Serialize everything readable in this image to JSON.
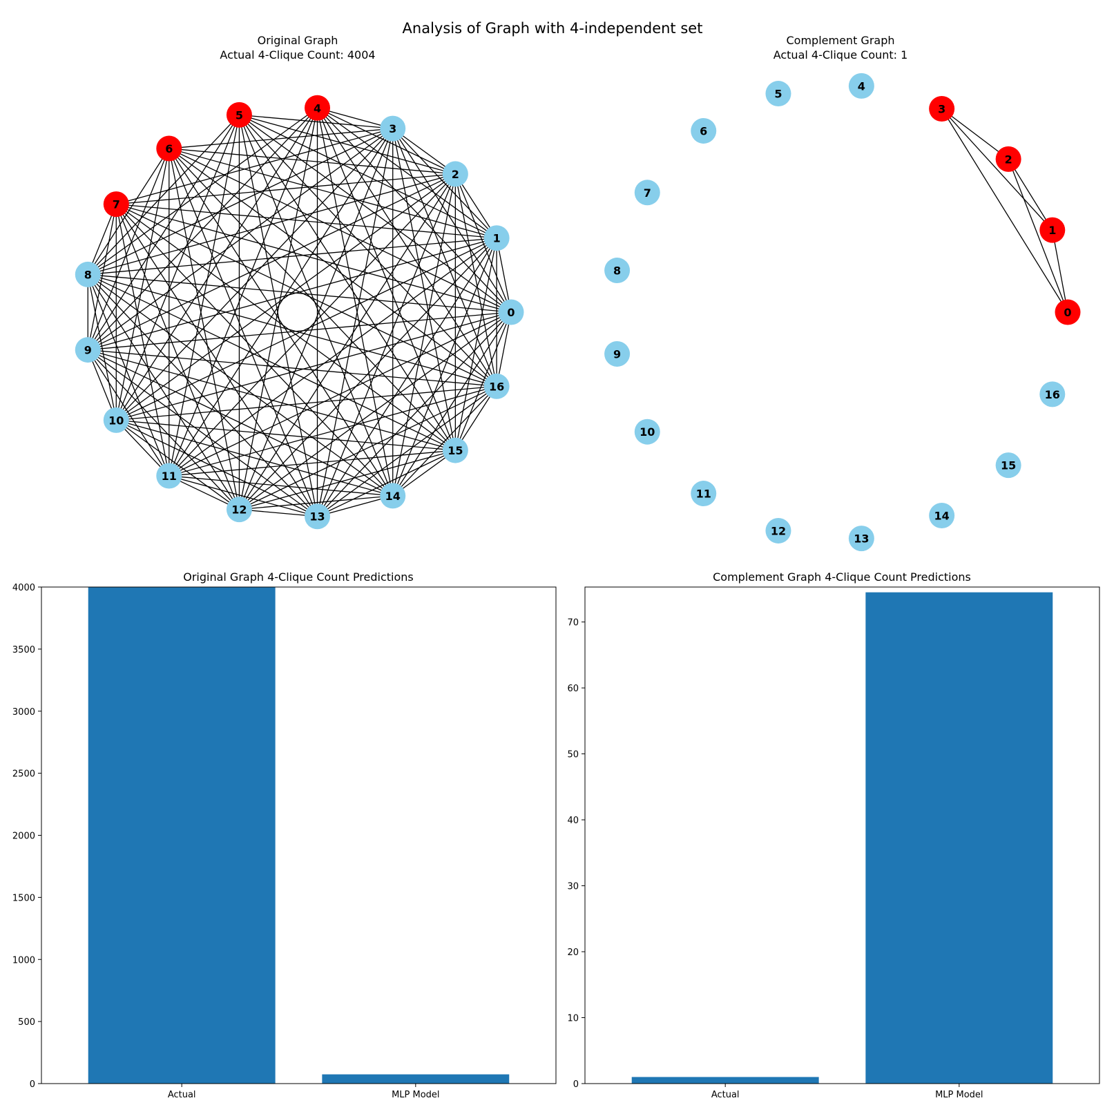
{
  "figure": {
    "suptitle": "Analysis of Graph with 4-independent set"
  },
  "colors": {
    "highlight_node": "#ff0000",
    "normal_node": "#87ceeb",
    "edge": "#000000",
    "bar": "#1f77b4"
  },
  "chart_data": [
    {
      "type": "graph",
      "title_line1": "Original Graph",
      "title_line2": "Actual 4-Clique Count: 4004",
      "nodes": [
        0,
        1,
        2,
        3,
        4,
        5,
        6,
        7,
        8,
        9,
        10,
        11,
        12,
        13,
        14,
        15,
        16
      ],
      "highlighted_nodes": [
        4,
        5,
        6,
        7
      ],
      "edges_rule": "all pairs except among highlighted nodes"
    },
    {
      "type": "graph",
      "title_line1": "Complement Graph",
      "title_line2": "Actual 4-Clique Count: 1",
      "nodes": [
        0,
        1,
        2,
        3,
        4,
        5,
        6,
        7,
        8,
        9,
        10,
        11,
        12,
        13,
        14,
        15,
        16
      ],
      "highlighted_nodes": [
        0,
        1,
        2,
        3
      ],
      "edges": [
        [
          0,
          1
        ],
        [
          0,
          2
        ],
        [
          0,
          3
        ],
        [
          1,
          2
        ],
        [
          1,
          3
        ],
        [
          2,
          3
        ]
      ]
    },
    {
      "type": "bar",
      "title": "Original Graph 4-Clique Count Predictions",
      "categories": [
        "Actual",
        "MLP Model"
      ],
      "values": [
        4004,
        74.5
      ],
      "ylim": [
        0,
        4000
      ],
      "yticks": [
        0,
        500,
        1000,
        1500,
        2000,
        2500,
        3000,
        3500,
        4000
      ],
      "xlabel": "",
      "ylabel": ""
    },
    {
      "type": "bar",
      "title": "Complement Graph 4-Clique Count Predictions",
      "categories": [
        "Actual",
        "MLP Model"
      ],
      "values": [
        1,
        74.5
      ],
      "ylim": [
        0,
        75.3
      ],
      "yticks": [
        0,
        10,
        20,
        30,
        40,
        50,
        60,
        70
      ],
      "xlabel": "",
      "ylabel": ""
    }
  ]
}
